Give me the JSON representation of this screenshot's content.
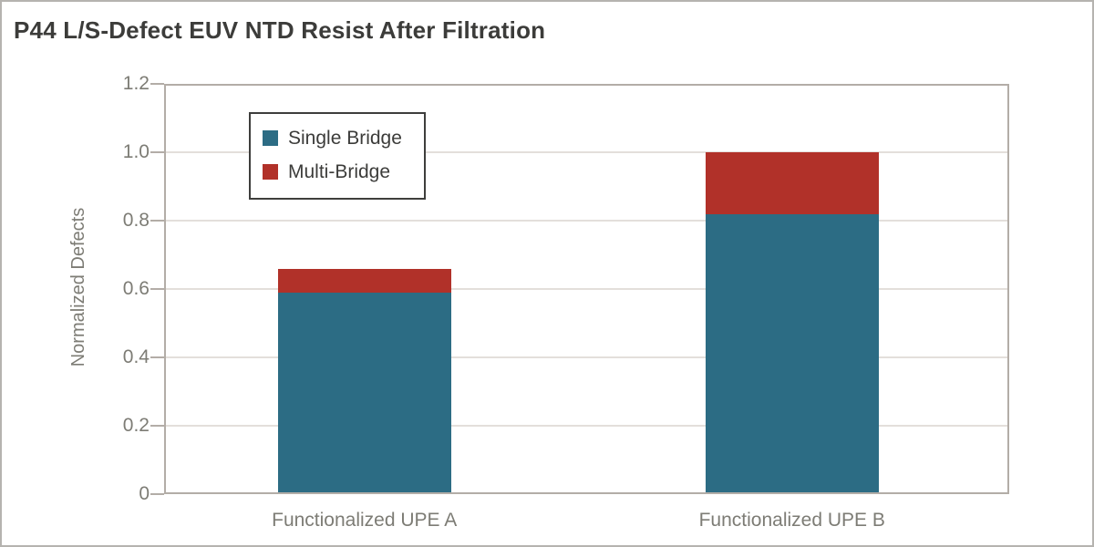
{
  "chart_data": {
    "type": "bar",
    "stacked": true,
    "title": "P44 L/S-Defect EUV NTD Resist After Filtration",
    "ylabel": "Normalized Defects",
    "xlabel": "",
    "categories": [
      "Functionalized UPE A",
      "Functionalized UPE B"
    ],
    "series": [
      {
        "name": "Single Bridge",
        "color": "#2C6C84",
        "values": [
          0.59,
          0.82
        ]
      },
      {
        "name": "Multi-Bridge",
        "color": "#B13129",
        "values": [
          0.07,
          0.18
        ]
      }
    ],
    "stacked_totals": [
      0.66,
      1.0
    ],
    "ylim": [
      0,
      1.2
    ],
    "yticks": [
      0,
      0.2,
      0.4,
      0.6,
      0.8,
      1.0,
      1.2
    ],
    "ytick_labels": [
      "0",
      "0.2",
      "0.4",
      "0.6",
      "0.8",
      "1.0",
      "1.2"
    ],
    "grid": true,
    "legend_position": "inside-top-left"
  },
  "styles": {
    "single_bridge_color": "#2C6C84",
    "multi_bridge_color": "#B13129",
    "axis_color": "#B3ADA7",
    "grid_color": "#E3DFDB",
    "tick_label_color": "#7D7C75",
    "title_color": "#3C3C3A",
    "legend_border_color": "#3E3E3C",
    "page_border_color": "#B5B3AF",
    "background": "#FFFFFF"
  }
}
